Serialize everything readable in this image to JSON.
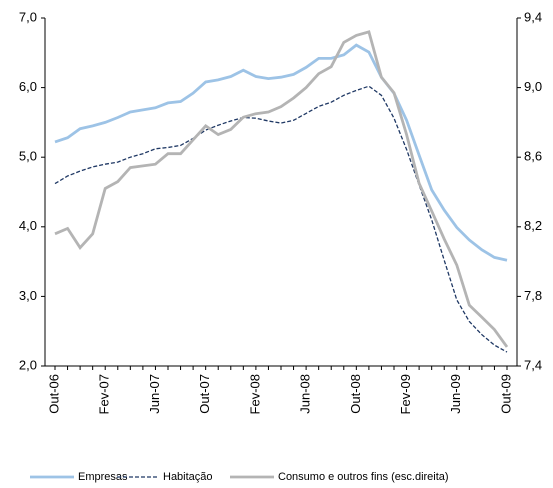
{
  "chart_data": {
    "type": "line",
    "categories": [
      "Out-06",
      null,
      null,
      null,
      "Fev-07",
      null,
      null,
      null,
      "Jun-07",
      null,
      null,
      null,
      "Out-07",
      null,
      null,
      null,
      "Fev-08",
      null,
      null,
      null,
      "Jun-08",
      null,
      null,
      null,
      "Out-08",
      null,
      null,
      null,
      "Fev-09",
      null,
      null,
      null,
      "Jun-09",
      null,
      null,
      null,
      "Out-09"
    ],
    "series": [
      {
        "name": "Empresas",
        "color": "#9dc3e6",
        "style": "solid",
        "axis": "y",
        "values": [
          5.22,
          5.28,
          5.41,
          5.45,
          5.5,
          5.57,
          5.65,
          5.68,
          5.71,
          5.78,
          5.8,
          5.92,
          6.08,
          6.11,
          6.16,
          6.25,
          6.16,
          6.13,
          6.15,
          6.19,
          6.29,
          6.42,
          6.42,
          6.47,
          6.61,
          6.51,
          6.15,
          5.92,
          5.53,
          5.03,
          4.53,
          4.24,
          3.99,
          3.81,
          3.67,
          3.56,
          3.52
        ]
      },
      {
        "name": "Habitação",
        "color": "#1f3864",
        "style": "dashed",
        "axis": "y",
        "values": [
          4.62,
          4.73,
          4.8,
          4.86,
          4.9,
          4.93,
          5.0,
          5.05,
          5.12,
          5.14,
          5.17,
          5.27,
          5.39,
          5.46,
          5.52,
          5.57,
          5.56,
          5.52,
          5.49,
          5.53,
          5.63,
          5.73,
          5.79,
          5.89,
          5.96,
          6.02,
          5.89,
          5.56,
          5.11,
          4.6,
          4.1,
          3.52,
          2.95,
          2.64,
          2.45,
          2.3,
          2.2
        ]
      },
      {
        "name": "Consumo e outros fins (esc.direita)",
        "color": "#b4b4b4",
        "style": "solid",
        "axis": "y2",
        "values": [
          8.16,
          8.19,
          8.08,
          8.16,
          8.42,
          8.46,
          8.54,
          8.55,
          8.56,
          8.62,
          8.62,
          8.7,
          8.78,
          8.73,
          8.76,
          8.83,
          8.85,
          8.86,
          8.89,
          8.94,
          9.0,
          9.08,
          9.12,
          9.26,
          9.3,
          9.32,
          9.06,
          8.97,
          8.73,
          8.45,
          8.29,
          8.13,
          7.98,
          7.75,
          7.68,
          7.61,
          7.51
        ]
      }
    ],
    "ylim": [
      2.0,
      7.0
    ],
    "yticks": [
      {
        "value": 2.0,
        "label": "2,0"
      },
      {
        "value": 3.0,
        "label": "3,0"
      },
      {
        "value": 4.0,
        "label": "4,0"
      },
      {
        "value": 5.0,
        "label": "5,0"
      },
      {
        "value": 6.0,
        "label": "6,0"
      },
      {
        "value": 7.0,
        "label": "7,0"
      }
    ],
    "y2lim": [
      7.4,
      9.4
    ],
    "y2ticks": [
      {
        "value": 7.4,
        "label": "7,4"
      },
      {
        "value": 7.8,
        "label": "7,8"
      },
      {
        "value": 8.2,
        "label": "8,2"
      },
      {
        "value": 8.6,
        "label": "8,6"
      },
      {
        "value": 9.0,
        "label": "9,0"
      },
      {
        "value": 9.4,
        "label": "9,4"
      }
    ],
    "grid": false,
    "legend": "bottom"
  }
}
